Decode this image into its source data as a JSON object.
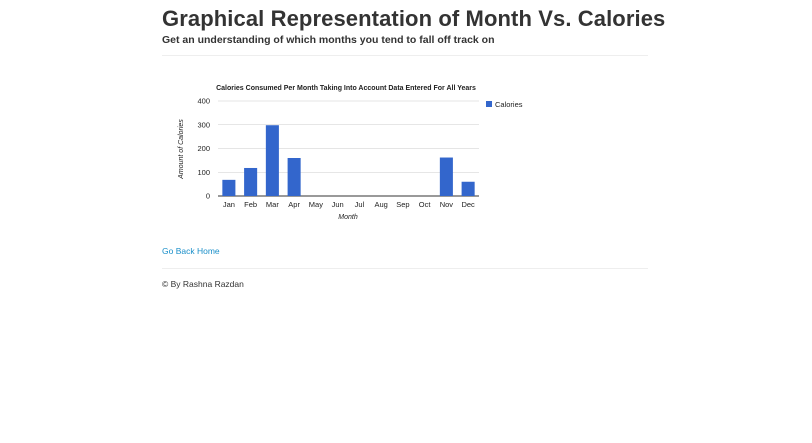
{
  "header": {
    "title": "Graphical Representation of Month Vs. Calories",
    "subtitle": "Get an understanding of which months you tend to fall off track on"
  },
  "chart_data": {
    "type": "bar",
    "title": "Calories Consumed Per Month Taking Into Account Data Entered For All Years",
    "xlabel": "Month",
    "ylabel": "Amount of Calories",
    "categories": [
      "Jan",
      "Feb",
      "Mar",
      "Apr",
      "May",
      "Jun",
      "Jul",
      "Aug",
      "Sep",
      "Oct",
      "Nov",
      "Dec"
    ],
    "series": [
      {
        "name": "Calories",
        "values": [
          68,
          118,
          298,
          160,
          0,
          0,
          0,
          0,
          0,
          0,
          162,
          60
        ],
        "color": "#3366cc"
      }
    ],
    "ylim": [
      0,
      400
    ],
    "yticks": [
      0,
      100,
      200,
      300,
      400
    ],
    "grid": true,
    "legend_position": "right"
  },
  "footer": {
    "back_link": "Go Back Home",
    "copyright": "© By Rashna Razdan"
  }
}
